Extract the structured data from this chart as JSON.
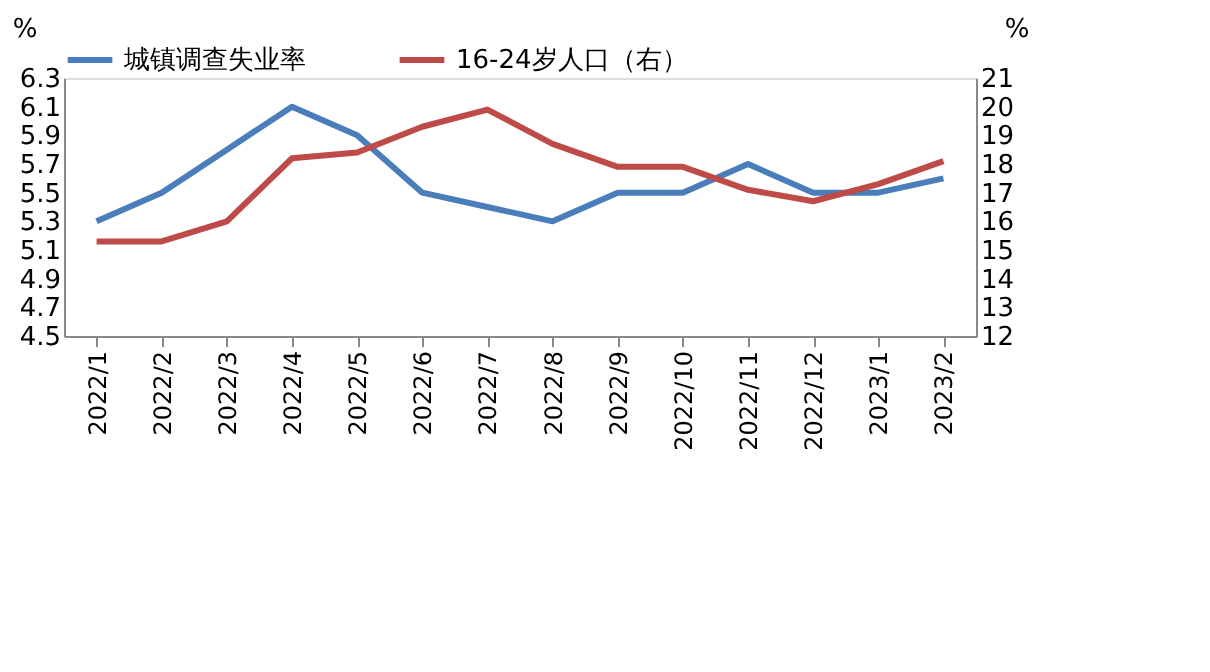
{
  "chart_data": {
    "type": "line",
    "categories": [
      "2022/1",
      "2022/2",
      "2022/3",
      "2022/4",
      "2022/5",
      "2022/6",
      "2022/7",
      "2022/8",
      "2022/9",
      "2022/10",
      "2022/11",
      "2022/12",
      "2023/1",
      "2023/2"
    ],
    "series": [
      {
        "name": "城镇调查失业率",
        "color": "#4a7ebb",
        "values": [
          5.3,
          5.5,
          5.8,
          6.1,
          5.9,
          5.5,
          5.4,
          5.3,
          5.5,
          5.5,
          5.7,
          5.5,
          5.5,
          5.6
        ]
      },
      {
        "name": "16-24岁人口（右）",
        "color": "#be4b48",
        "axis": "y2",
        "values": [
          15.3,
          15.3,
          16.0,
          18.2,
          18.4,
          19.3,
          19.9,
          18.7,
          17.9,
          17.9,
          17.1,
          16.7,
          17.3,
          18.1
        ]
      }
    ],
    "ylabel": "%",
    "y2label": "%",
    "ylim": [
      4.5,
      6.3
    ],
    "yticks": [
      4.5,
      4.7,
      4.9,
      5.1,
      5.3,
      5.5,
      5.7,
      5.9,
      6.1,
      6.3
    ],
    "y2lim": [
      12,
      21
    ],
    "y2ticks": [
      12,
      13,
      14,
      15,
      16,
      17,
      18,
      19,
      20,
      21
    ],
    "legend": "top",
    "grid": false,
    "marker": "none",
    "line_style": "solid"
  }
}
